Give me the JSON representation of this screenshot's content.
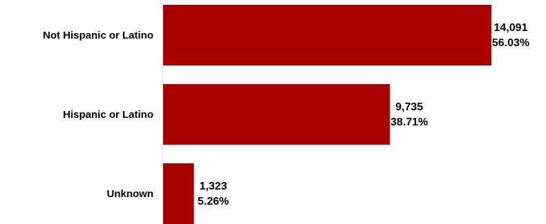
{
  "chart_data": {
    "type": "bar",
    "orientation": "horizontal",
    "categories": [
      "Not Hispanic or Latino",
      "Hispanic or Latino",
      "Unknown"
    ],
    "values": [
      14091,
      9735,
      1323
    ],
    "value_labels": [
      "14,091",
      "9,735",
      "1,323"
    ],
    "percent_labels": [
      "56.03%",
      "38.71%",
      "5.26%"
    ],
    "title": "",
    "xlabel": "",
    "ylabel": "",
    "bar_color": "#a90000",
    "grid": false,
    "legend": "none"
  }
}
